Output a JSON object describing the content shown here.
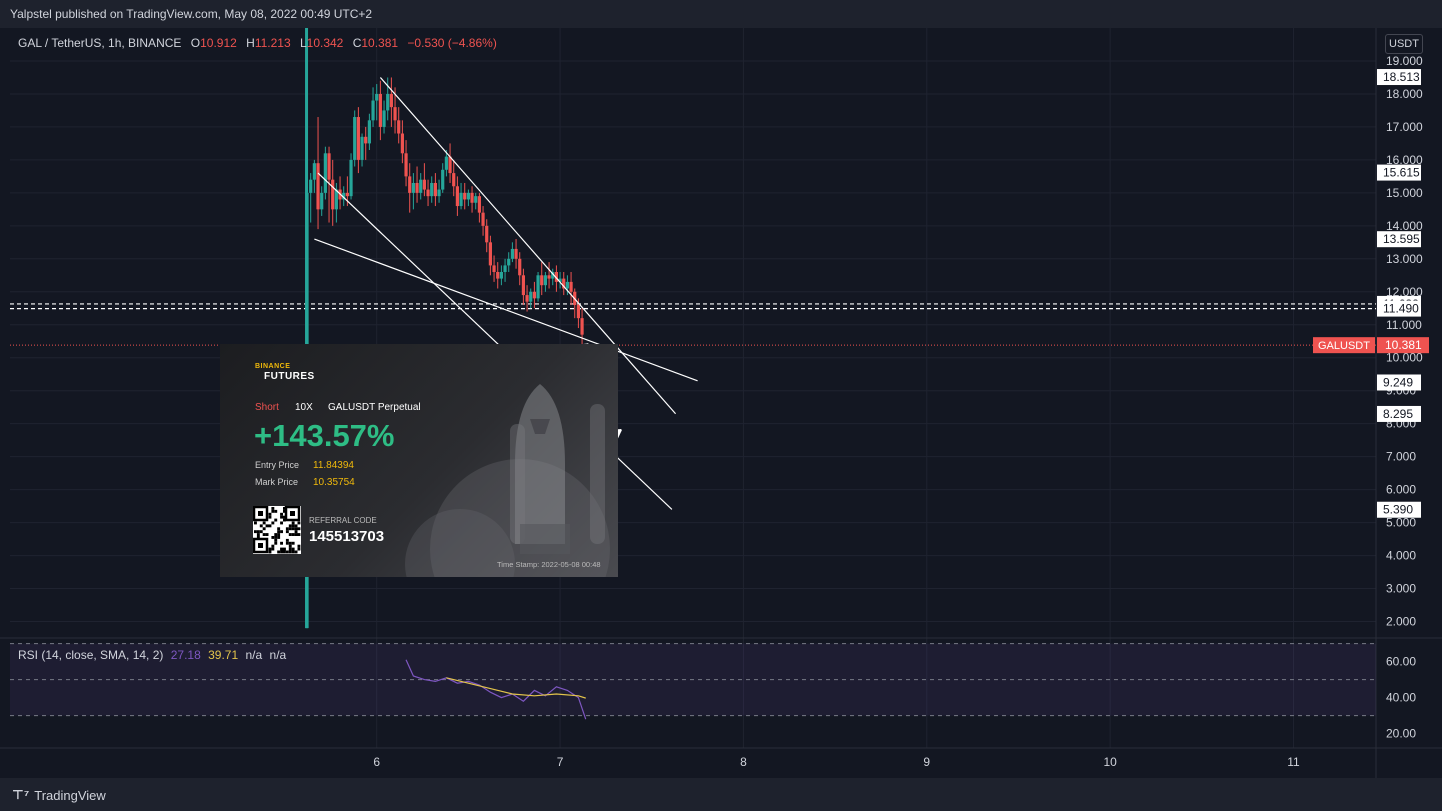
{
  "header": {
    "publisher": "Yalpstel published on TradingView.com, May 08, 2022 00:49 UTC+2"
  },
  "footer": {
    "brand": "TradingView"
  },
  "legend": {
    "symbol": "GAL / TetherUS, 1h, BINANCE",
    "open_label": "O",
    "open": "10.912",
    "high_label": "H",
    "high": "11.213",
    "low_label": "L",
    "low": "10.342",
    "close_label": "C",
    "close": "10.381",
    "change": "−0.530 (−4.86%)"
  },
  "rsi_legend": {
    "label": "RSI (14, close, SMA, 14, 2)",
    "rsi": "27.18",
    "sma": "39.71",
    "na1": "n/a",
    "na2": "n/a"
  },
  "price_axis_unit": "USDT",
  "price_ticks": [
    "19.000",
    "18.000",
    "17.000",
    "16.000",
    "15.000",
    "14.000",
    "13.000",
    "12.000",
    "11.000",
    "10.000",
    "9.000",
    "8.000",
    "7.000",
    "6.000",
    "5.000",
    "4.000",
    "3.000",
    "2.000"
  ],
  "price_tick_values": [
    19,
    18,
    17,
    16,
    15,
    14,
    13,
    12,
    11,
    10,
    9,
    8,
    7,
    6,
    5,
    4,
    3,
    2
  ],
  "price_markers": [
    {
      "value": 18.513,
      "text": "18.513"
    },
    {
      "value": 15.615,
      "text": "15.615"
    },
    {
      "value": 13.595,
      "text": "13.595"
    },
    {
      "value": 11.632,
      "text": "11.632"
    },
    {
      "value": 11.49,
      "text": "11.490"
    },
    {
      "value": 9.249,
      "text": "9.249"
    },
    {
      "value": 8.295,
      "text": "8.295"
    },
    {
      "value": 5.39,
      "text": "5.390"
    }
  ],
  "last_price": {
    "value": 10.381,
    "text": "10.381",
    "symbol": "GALUSDT"
  },
  "rsi_ticks": [
    "60.00",
    "40.00",
    "20.00"
  ],
  "rsi_tick_values": [
    60,
    40,
    20
  ],
  "time_ticks": [
    "6",
    "7",
    "8",
    "9",
    "10",
    "11"
  ],
  "time_tick_values": [
    6,
    7,
    8,
    9,
    10,
    11
  ],
  "colors": {
    "up": "#26a69a",
    "down": "#ef5350",
    "bg": "#131722",
    "rsi": "#7e57c2",
    "rsi_sma": "#e3c44b",
    "line": "#ffffff"
  },
  "card": {
    "brand": "BINANCE",
    "brand2": "FUTURES",
    "side": "Short",
    "leverage": "10X",
    "pair": "GALUSDT Perpetual",
    "pnl": "+143.57%",
    "entry_label": "Entry Price",
    "entry_value": "11.84394",
    "mark_label": "Mark Price",
    "mark_value": "10.35754",
    "referral_label": "REFERRAL CODE",
    "referral_code": "145513703",
    "timestamp": "Time Stamp: 2022-05-08 00:48"
  },
  "chart_data": {
    "type": "candlestick",
    "title": "GAL / TetherUS, 1h, BINANCE",
    "x_unit": "day (May 2022)",
    "xlim": [
      4.0,
      11.45
    ],
    "ylim": [
      1.5,
      20.0
    ],
    "launch_x": 5.62,
    "candles": [
      {
        "x": 5.62,
        "o": 1.8,
        "h": 18.7,
        "c": 15.0,
        "l": 1.8
      },
      {
        "x": 5.64,
        "o": 15.0,
        "h": 15.6,
        "c": 15.4,
        "l": 14.1
      },
      {
        "x": 5.66,
        "o": 15.4,
        "h": 16.0,
        "c": 15.9,
        "l": 15.0
      },
      {
        "x": 5.68,
        "o": 15.9,
        "h": 17.3,
        "c": 14.5,
        "l": 13.9
      },
      {
        "x": 5.7,
        "o": 14.5,
        "h": 15.2,
        "c": 15.0,
        "l": 14.3
      },
      {
        "x": 5.72,
        "o": 15.0,
        "h": 16.4,
        "c": 16.2,
        "l": 14.8
      },
      {
        "x": 5.74,
        "o": 16.2,
        "h": 16.4,
        "c": 15.4,
        "l": 14.1
      },
      {
        "x": 5.76,
        "o": 15.4,
        "h": 16.0,
        "c": 14.5,
        "l": 14.0
      },
      {
        "x": 5.78,
        "o": 14.5,
        "h": 15.3,
        "c": 15.1,
        "l": 14.1
      },
      {
        "x": 5.8,
        "o": 15.1,
        "h": 15.5,
        "c": 14.8,
        "l": 14.5
      },
      {
        "x": 5.82,
        "o": 14.8,
        "h": 15.2,
        "c": 15.0,
        "l": 14.6
      },
      {
        "x": 5.84,
        "o": 15.0,
        "h": 15.5,
        "c": 14.9,
        "l": 14.6
      },
      {
        "x": 5.86,
        "o": 14.9,
        "h": 16.2,
        "c": 16.0,
        "l": 14.8
      },
      {
        "x": 5.88,
        "o": 16.0,
        "h": 17.5,
        "c": 17.3,
        "l": 15.8
      },
      {
        "x": 5.9,
        "o": 17.3,
        "h": 17.6,
        "c": 16.0,
        "l": 15.6
      },
      {
        "x": 5.92,
        "o": 16.0,
        "h": 16.8,
        "c": 16.7,
        "l": 15.8
      },
      {
        "x": 5.94,
        "o": 16.7,
        "h": 17.0,
        "c": 16.5,
        "l": 16.0
      },
      {
        "x": 5.96,
        "o": 16.5,
        "h": 17.4,
        "c": 17.2,
        "l": 16.3
      },
      {
        "x": 5.98,
        "o": 17.2,
        "h": 18.2,
        "c": 17.8,
        "l": 17.0
      },
      {
        "x": 6.0,
        "o": 17.8,
        "h": 18.3,
        "c": 18.0,
        "l": 17.2
      },
      {
        "x": 6.02,
        "o": 18.0,
        "h": 18.4,
        "c": 17.0,
        "l": 16.6
      },
      {
        "x": 6.04,
        "o": 17.0,
        "h": 17.8,
        "c": 17.5,
        "l": 16.8
      },
      {
        "x": 6.06,
        "o": 17.5,
        "h": 18.5,
        "c": 18.0,
        "l": 17.2
      },
      {
        "x": 6.08,
        "o": 18.0,
        "h": 18.5,
        "c": 17.6,
        "l": 17.0
      },
      {
        "x": 6.1,
        "o": 17.6,
        "h": 18.2,
        "c": 17.2,
        "l": 16.8
      },
      {
        "x": 6.12,
        "o": 17.2,
        "h": 17.6,
        "c": 16.8,
        "l": 16.5
      },
      {
        "x": 6.14,
        "o": 16.8,
        "h": 17.2,
        "c": 16.2,
        "l": 15.9
      },
      {
        "x": 6.16,
        "o": 16.2,
        "h": 16.6,
        "c": 15.5,
        "l": 15.2
      },
      {
        "x": 6.18,
        "o": 15.5,
        "h": 15.9,
        "c": 15.0,
        "l": 14.4
      },
      {
        "x": 6.2,
        "o": 15.0,
        "h": 15.6,
        "c": 15.3,
        "l": 14.5
      },
      {
        "x": 6.22,
        "o": 15.3,
        "h": 15.8,
        "c": 15.0,
        "l": 14.7
      },
      {
        "x": 6.24,
        "o": 15.0,
        "h": 15.6,
        "c": 15.4,
        "l": 14.8
      },
      {
        "x": 6.26,
        "o": 15.4,
        "h": 15.9,
        "c": 15.1,
        "l": 14.9
      },
      {
        "x": 6.28,
        "o": 15.1,
        "h": 15.4,
        "c": 14.9,
        "l": 14.6
      },
      {
        "x": 6.3,
        "o": 14.9,
        "h": 15.5,
        "c": 15.3,
        "l": 14.7
      },
      {
        "x": 6.32,
        "o": 15.3,
        "h": 15.6,
        "c": 14.9,
        "l": 14.6
      },
      {
        "x": 6.34,
        "o": 14.9,
        "h": 15.4,
        "c": 15.1,
        "l": 14.7
      },
      {
        "x": 6.36,
        "o": 15.1,
        "h": 15.9,
        "c": 15.7,
        "l": 15.0
      },
      {
        "x": 6.38,
        "o": 15.7,
        "h": 16.3,
        "c": 16.1,
        "l": 15.5
      },
      {
        "x": 6.4,
        "o": 16.1,
        "h": 16.5,
        "c": 15.6,
        "l": 15.3
      },
      {
        "x": 6.42,
        "o": 15.6,
        "h": 16.0,
        "c": 15.2,
        "l": 14.9
      },
      {
        "x": 6.44,
        "o": 15.2,
        "h": 15.5,
        "c": 14.6,
        "l": 14.3
      },
      {
        "x": 6.46,
        "o": 14.6,
        "h": 15.3,
        "c": 15.0,
        "l": 14.5
      },
      {
        "x": 6.48,
        "o": 15.0,
        "h": 15.3,
        "c": 14.8,
        "l": 14.5
      },
      {
        "x": 6.5,
        "o": 14.8,
        "h": 15.1,
        "c": 15.0,
        "l": 14.6
      },
      {
        "x": 6.52,
        "o": 15.0,
        "h": 15.2,
        "c": 14.7,
        "l": 14.4
      },
      {
        "x": 6.54,
        "o": 14.7,
        "h": 15.0,
        "c": 14.9,
        "l": 14.5
      },
      {
        "x": 6.56,
        "o": 14.9,
        "h": 15.0,
        "c": 14.4,
        "l": 14.1
      },
      {
        "x": 6.58,
        "o": 14.4,
        "h": 14.6,
        "c": 14.0,
        "l": 13.7
      },
      {
        "x": 6.6,
        "o": 14.0,
        "h": 14.2,
        "c": 13.5,
        "l": 13.2
      },
      {
        "x": 6.62,
        "o": 13.5,
        "h": 13.7,
        "c": 12.8,
        "l": 12.5
      },
      {
        "x": 6.64,
        "o": 12.8,
        "h": 13.1,
        "c": 12.6,
        "l": 12.3
      },
      {
        "x": 6.66,
        "o": 12.6,
        "h": 12.9,
        "c": 12.4,
        "l": 12.1
      },
      {
        "x": 6.68,
        "o": 12.4,
        "h": 12.8,
        "c": 12.6,
        "l": 12.2
      },
      {
        "x": 6.7,
        "o": 12.6,
        "h": 13.0,
        "c": 12.8,
        "l": 12.3
      },
      {
        "x": 6.72,
        "o": 12.8,
        "h": 13.2,
        "c": 13.0,
        "l": 12.6
      },
      {
        "x": 6.74,
        "o": 13.0,
        "h": 13.5,
        "c": 13.3,
        "l": 12.9
      },
      {
        "x": 6.76,
        "o": 13.3,
        "h": 13.6,
        "c": 13.0,
        "l": 12.7
      },
      {
        "x": 6.78,
        "o": 13.0,
        "h": 13.2,
        "c": 12.5,
        "l": 12.2
      },
      {
        "x": 6.8,
        "o": 12.5,
        "h": 12.7,
        "c": 11.9,
        "l": 11.6
      },
      {
        "x": 6.82,
        "o": 11.9,
        "h": 12.2,
        "c": 11.7,
        "l": 11.4
      },
      {
        "x": 6.84,
        "o": 11.7,
        "h": 12.1,
        "c": 12.0,
        "l": 11.5
      },
      {
        "x": 6.86,
        "o": 12.0,
        "h": 12.3,
        "c": 11.8,
        "l": 11.5
      },
      {
        "x": 6.88,
        "o": 11.8,
        "h": 12.6,
        "c": 12.5,
        "l": 11.7
      },
      {
        "x": 6.9,
        "o": 12.5,
        "h": 12.9,
        "c": 12.2,
        "l": 11.9
      },
      {
        "x": 6.92,
        "o": 12.2,
        "h": 12.6,
        "c": 12.5,
        "l": 12.0
      },
      {
        "x": 6.94,
        "o": 12.5,
        "h": 12.9,
        "c": 12.4,
        "l": 12.1
      },
      {
        "x": 6.96,
        "o": 12.4,
        "h": 12.7,
        "c": 12.6,
        "l": 12.2
      },
      {
        "x": 6.98,
        "o": 12.6,
        "h": 12.8,
        "c": 12.3,
        "l": 12.0
      },
      {
        "x": 7.0,
        "o": 12.3,
        "h": 12.6,
        "c": 12.4,
        "l": 12.1
      },
      {
        "x": 7.02,
        "o": 12.4,
        "h": 12.6,
        "c": 12.1,
        "l": 11.9
      },
      {
        "x": 7.04,
        "o": 12.1,
        "h": 12.5,
        "c": 12.3,
        "l": 11.9
      },
      {
        "x": 7.06,
        "o": 12.3,
        "h": 12.6,
        "c": 12.0,
        "l": 11.6
      },
      {
        "x": 7.08,
        "o": 12.0,
        "h": 12.1,
        "c": 11.6,
        "l": 11.2
      },
      {
        "x": 7.1,
        "o": 11.6,
        "h": 11.8,
        "c": 11.2,
        "l": 10.9
      },
      {
        "x": 7.12,
        "o": 11.2,
        "h": 11.5,
        "c": 10.7,
        "l": 10.4
      }
    ],
    "rsi": {
      "x": [
        6.16,
        6.2,
        6.26,
        6.32,
        6.38,
        6.44,
        6.5,
        6.56,
        6.62,
        6.68,
        6.74,
        6.8,
        6.86,
        6.92,
        6.98,
        7.04,
        7.1,
        7.14
      ],
      "values": [
        61,
        52,
        50,
        49,
        51,
        48,
        49,
        47,
        43,
        40,
        42,
        38,
        44,
        41,
        46,
        44,
        40,
        28
      ]
    },
    "rsi_sma": {
      "x": [
        6.38,
        6.5,
        6.62,
        6.74,
        6.86,
        6.98,
        7.1,
        7.14
      ],
      "values": [
        51,
        48,
        45,
        42,
        41,
        42,
        41,
        39.71
      ]
    },
    "rsi_ylim": [
      12,
      72
    ],
    "rsi_band": [
      30,
      70
    ],
    "rsi_mid": 50,
    "trend_lines": [
      {
        "x1": 5.66,
        "y1": 13.6,
        "x2": 7.75,
        "y2": 9.3
      },
      {
        "x1": 5.68,
        "y1": 15.6,
        "x2": 7.61,
        "y2": 5.4
      },
      {
        "x1": 6.02,
        "y1": 18.5,
        "x2": 7.63,
        "y2": 8.3
      }
    ],
    "horizontal_lines": [
      11.632,
      11.49
    ],
    "arrows": [
      {
        "x1": 7.05,
        "y1": 9.1,
        "x2": 7.0,
        "y2": 7.0
      },
      {
        "x1": 6.99,
        "y1": 9.7,
        "x2": 7.15,
        "y2": 10.4
      },
      {
        "x1": 7.14,
        "y1": 7.1,
        "x2": 7.33,
        "y2": 7.8
      }
    ]
  }
}
